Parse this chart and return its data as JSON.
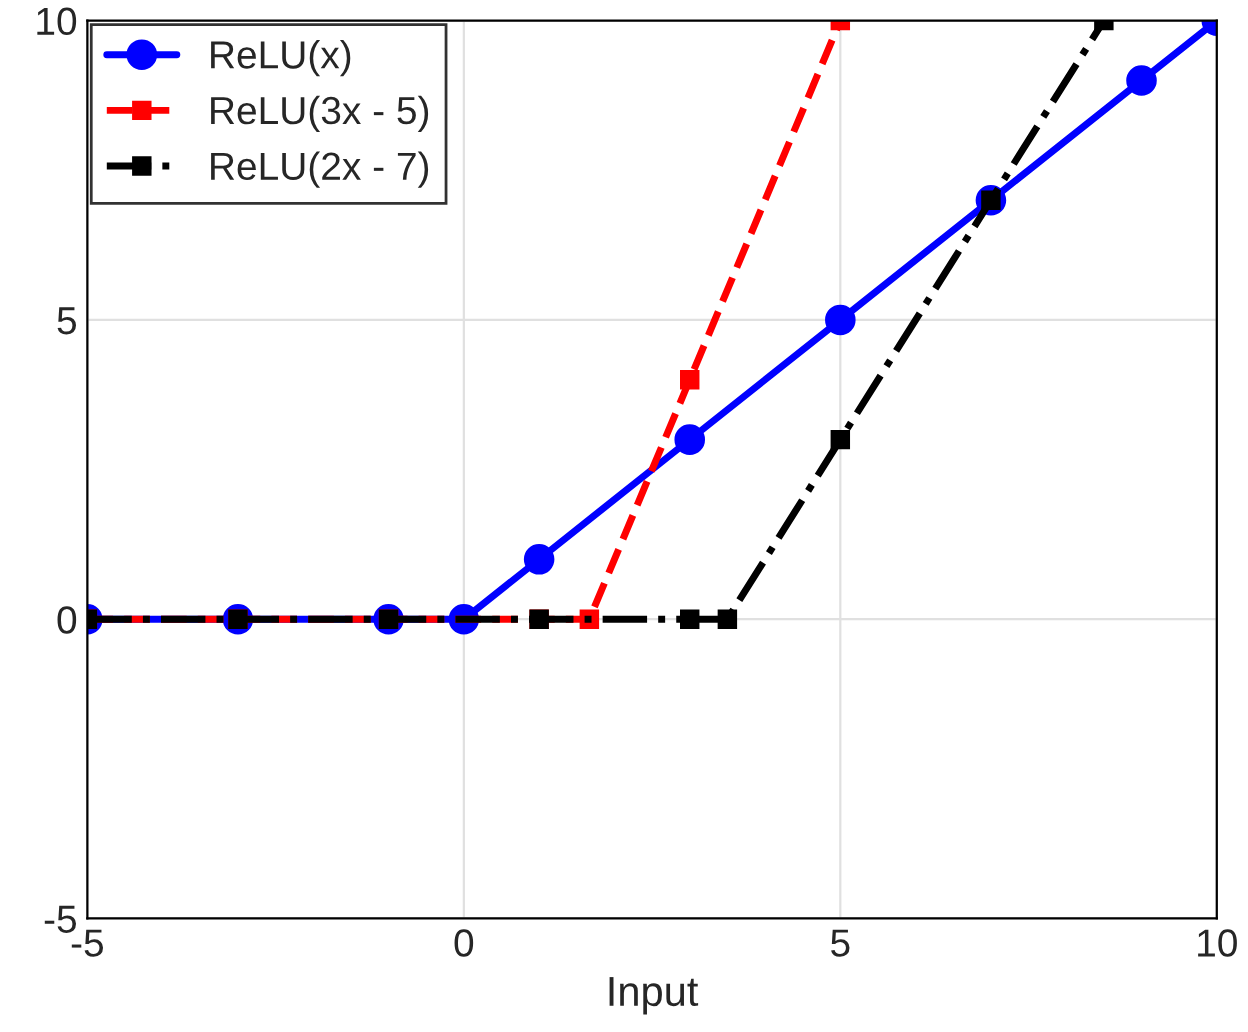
{
  "chart_data": {
    "type": "line",
    "xlabel": "Input",
    "xlim": [
      -5,
      10
    ],
    "ylim": [
      -5,
      10
    ],
    "xticks": [
      -5,
      0,
      5,
      10
    ],
    "yticks": [
      -5,
      0,
      5,
      10
    ],
    "grid": true,
    "legend": "top left",
    "series": [
      {
        "name": "ReLU(x)",
        "color": "#0000ff",
        "marker": "circle",
        "line_style": "solid",
        "x": [
          -5,
          -3,
          -1,
          0,
          1,
          3,
          5,
          7,
          9,
          10
        ],
        "values": [
          0,
          0,
          0,
          0,
          1,
          3,
          5,
          7,
          9,
          10
        ]
      },
      {
        "name": "ReLU(3x - 5)",
        "color": "#ff0000",
        "marker": "square",
        "line_style": "dashed",
        "x": [
          -5,
          -3,
          -1,
          1,
          1.667,
          3,
          5
        ],
        "values": [
          0,
          0,
          0,
          0,
          0,
          4,
          10
        ]
      },
      {
        "name": "ReLU(2x - 7)",
        "color": "#000000",
        "marker": "square",
        "line_style": "dashdot",
        "x": [
          -5,
          -3,
          -1,
          1,
          3,
          3.5,
          5,
          7,
          8.5
        ],
        "values": [
          0,
          0,
          0,
          0,
          0,
          0,
          3,
          7,
          10
        ]
      }
    ]
  }
}
